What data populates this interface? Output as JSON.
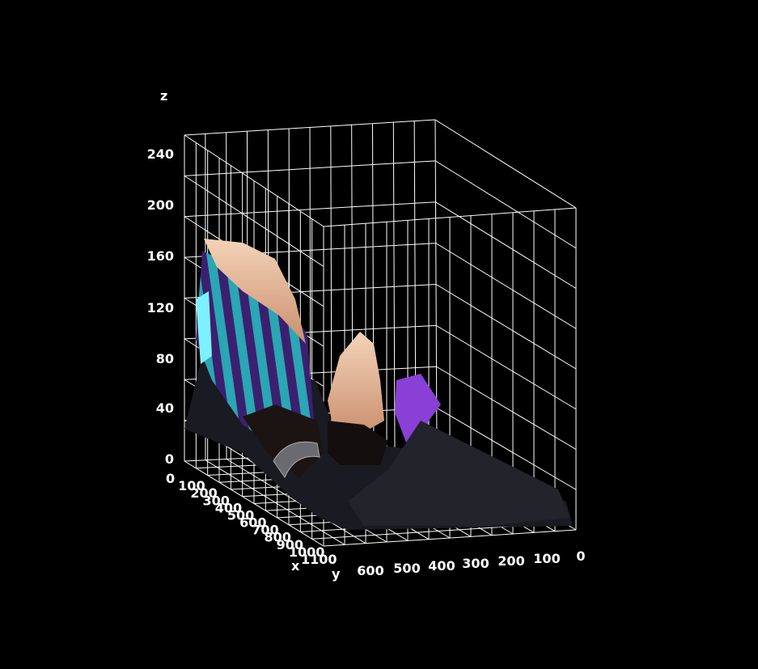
{
  "chart_data": {
    "type": "surface",
    "axes": {
      "x": {
        "label": "x",
        "ticks": [
          "0",
          "100",
          "200",
          "300",
          "400",
          "500",
          "600",
          "700",
          "800",
          "900",
          "1000",
          "1100"
        ]
      },
      "y": {
        "label": "y",
        "ticks": [
          "600",
          "500",
          "400",
          "300",
          "200",
          "100",
          "0"
        ]
      },
      "z": {
        "label": "z",
        "ticks": [
          "0",
          "40",
          "80",
          "120",
          "160",
          "200",
          "240"
        ]
      }
    },
    "grid": true,
    "colors": {
      "background": "#000000",
      "grid": "#ffffff",
      "text": "#ffffff"
    }
  }
}
